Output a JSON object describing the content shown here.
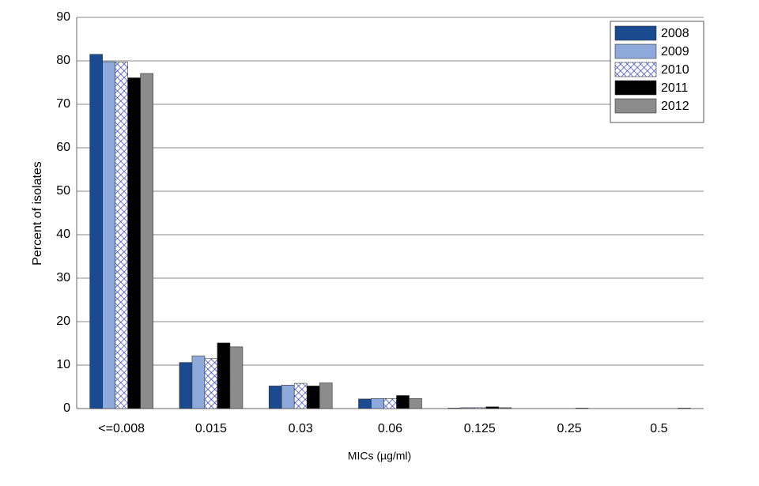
{
  "chart_data": {
    "type": "bar",
    "x_label": "MICs (µg/ml)",
    "y_label": "Percent of isolates",
    "categories": [
      "<=0.008",
      "0.015",
      "0.03",
      "0.06",
      "0.125",
      "0.25",
      "0.5"
    ],
    "series": [
      {
        "name": "2008",
        "color": "#1a4a8f",
        "values": [
          81.5,
          10.6,
          5.2,
          2.2,
          0.1,
          0,
          0
        ]
      },
      {
        "name": "2009",
        "color": "#8eaadb",
        "values": [
          79.8,
          12.1,
          5.4,
          2.3,
          0.2,
          0,
          0
        ]
      },
      {
        "name": "2010",
        "color": "#2b3fc4",
        "pattern": "crosshatch",
        "values": [
          79.7,
          11.5,
          5.8,
          2.3,
          0.2,
          0,
          0
        ]
      },
      {
        "name": "2011",
        "color": "#000000",
        "values": [
          76.1,
          15.1,
          5.2,
          3.0,
          0.4,
          0.1,
          0
        ]
      },
      {
        "name": "2012",
        "color": "#8c8c8c",
        "values": [
          77.1,
          14.2,
          5.9,
          2.3,
          0.2,
          0,
          0.1
        ]
      }
    ],
    "ylim": [
      0,
      90
    ],
    "yticks": [
      0,
      10,
      20,
      30,
      40,
      50,
      60,
      70,
      80,
      90
    ],
    "grid": true,
    "legend": "top-right"
  }
}
